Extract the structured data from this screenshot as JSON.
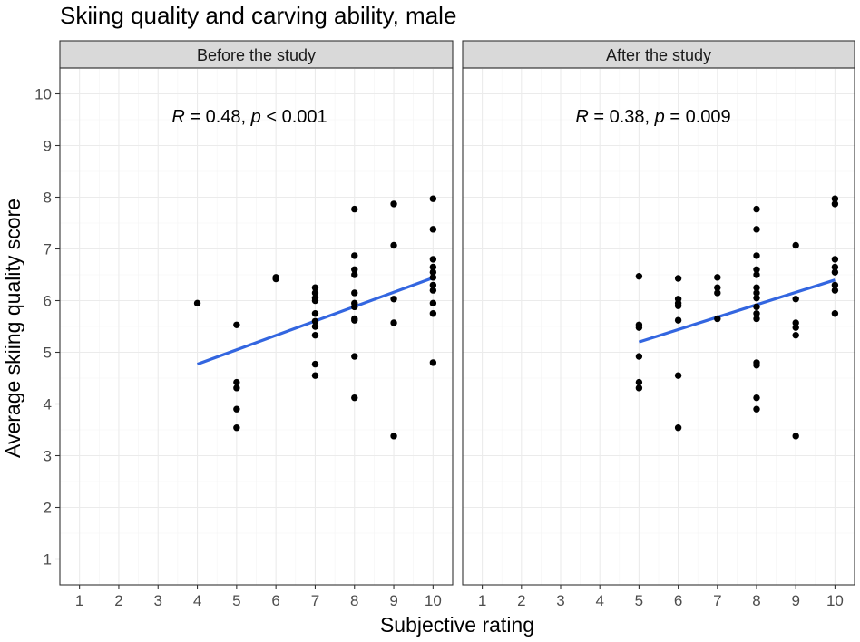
{
  "chart_data": {
    "type": "scatter",
    "title": "Skiing quality and carving ability, male",
    "xlabel": "Subjective rating",
    "ylabel": "Average skiing quality score",
    "xlim": [
      0.5,
      10.5
    ],
    "ylim": [
      0.5,
      10.5
    ],
    "x_ticks": [
      "1",
      "2",
      "3",
      "4",
      "5",
      "6",
      "7",
      "8",
      "9",
      "10"
    ],
    "y_ticks": [
      "1",
      "2",
      "3",
      "4",
      "5",
      "6",
      "7",
      "8",
      "9",
      "10"
    ],
    "grid": true,
    "colors": {
      "points": "#000000",
      "fit_line": "#3366e0",
      "strip": "#d9d9d9"
    },
    "panels": [
      {
        "strip_label": "Before the study",
        "annotation": {
          "r_symbol": "R",
          "r_text": " = 0.48, ",
          "p_symbol": "p",
          "p_text": " < 0.001"
        },
        "fit_line": {
          "x": [
            4,
            10
          ],
          "y": [
            4.77,
            6.44
          ]
        },
        "points": [
          [
            4,
            5.95
          ],
          [
            5,
            5.53
          ],
          [
            5,
            4.42
          ],
          [
            5,
            4.31
          ],
          [
            5,
            3.9
          ],
          [
            5,
            3.54
          ],
          [
            6,
            6.42
          ],
          [
            6,
            6.45
          ],
          [
            7,
            6.25
          ],
          [
            7,
            6.15
          ],
          [
            7,
            6.05
          ],
          [
            7,
            6.0
          ],
          [
            7,
            5.75
          ],
          [
            7,
            5.6
          ],
          [
            7,
            5.5
          ],
          [
            7,
            5.33
          ],
          [
            7,
            4.77
          ],
          [
            7,
            4.55
          ],
          [
            8,
            7.77
          ],
          [
            8,
            6.87
          ],
          [
            8,
            6.6
          ],
          [
            8,
            6.5
          ],
          [
            8,
            6.15
          ],
          [
            8,
            5.95
          ],
          [
            8,
            5.88
          ],
          [
            8,
            5.65
          ],
          [
            8,
            5.62
          ],
          [
            8,
            4.92
          ],
          [
            8,
            4.12
          ],
          [
            9,
            7.87
          ],
          [
            9,
            7.07
          ],
          [
            9,
            6.03
          ],
          [
            9,
            5.57
          ],
          [
            9,
            3.38
          ],
          [
            10,
            7.97
          ],
          [
            10,
            7.38
          ],
          [
            10,
            6.8
          ],
          [
            10,
            6.65
          ],
          [
            10,
            6.55
          ],
          [
            10,
            6.45
          ],
          [
            10,
            6.3
          ],
          [
            10,
            6.2
          ],
          [
            10,
            5.95
          ],
          [
            10,
            5.75
          ],
          [
            10,
            4.8
          ]
        ]
      },
      {
        "strip_label": "After the study",
        "annotation": {
          "r_symbol": "R",
          "r_text": " = 0.38, ",
          "p_symbol": "p",
          "p_text": " = 0.009"
        },
        "fit_line": {
          "x": [
            5,
            10
          ],
          "y": [
            5.2,
            6.4
          ]
        },
        "points": [
          [
            5,
            6.47
          ],
          [
            5,
            5.53
          ],
          [
            5,
            5.48
          ],
          [
            5,
            4.92
          ],
          [
            5,
            4.42
          ],
          [
            5,
            4.31
          ],
          [
            6,
            6.43
          ],
          [
            6,
            6.03
          ],
          [
            6,
            5.95
          ],
          [
            6,
            5.9
          ],
          [
            6,
            5.62
          ],
          [
            6,
            4.55
          ],
          [
            6,
            3.54
          ],
          [
            7,
            6.45
          ],
          [
            7,
            6.25
          ],
          [
            7,
            6.15
          ],
          [
            7,
            5.65
          ],
          [
            8,
            7.77
          ],
          [
            8,
            7.38
          ],
          [
            8,
            6.87
          ],
          [
            8,
            6.6
          ],
          [
            8,
            6.5
          ],
          [
            8,
            6.25
          ],
          [
            8,
            6.15
          ],
          [
            8,
            6.05
          ],
          [
            8,
            5.88
          ],
          [
            8,
            5.75
          ],
          [
            8,
            5.65
          ],
          [
            8,
            4.8
          ],
          [
            8,
            4.75
          ],
          [
            8,
            4.12
          ],
          [
            8,
            3.9
          ],
          [
            9,
            7.07
          ],
          [
            9,
            6.03
          ],
          [
            9,
            5.57
          ],
          [
            9,
            5.48
          ],
          [
            9,
            5.33
          ],
          [
            9,
            3.38
          ],
          [
            10,
            7.97
          ],
          [
            10,
            7.87
          ],
          [
            10,
            6.8
          ],
          [
            10,
            6.65
          ],
          [
            10,
            6.55
          ],
          [
            10,
            6.3
          ],
          [
            10,
            6.2
          ],
          [
            10,
            5.75
          ]
        ]
      }
    ]
  }
}
